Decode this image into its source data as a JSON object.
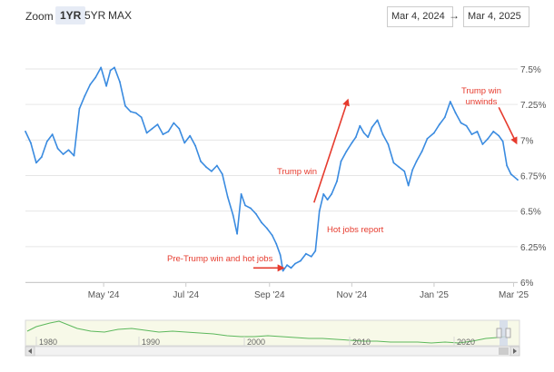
{
  "toolbar": {
    "zoom_label": "Zoom",
    "zoom_options": [
      "1YR",
      "5YR",
      "MAX"
    ],
    "active_zoom": "1YR",
    "date_from": "Mar 4, 2024",
    "date_arrow": "→",
    "date_to": "Mar 4, 2025"
  },
  "chart_data": {
    "type": "line",
    "title": "",
    "xlabel": "",
    "ylabel": "",
    "ylim": [
      6.0,
      7.5
    ],
    "y_ticks": [
      "6%",
      "6.25%",
      "6.5%",
      "6.75%",
      "7%",
      "7.25%",
      "7.5%"
    ],
    "y_tick_values": [
      6.0,
      6.25,
      6.5,
      6.75,
      7.0,
      7.25,
      7.5
    ],
    "x_range": [
      "2024-03-04",
      "2025-03-04"
    ],
    "x_ticks": [
      {
        "date": "2024-05-01",
        "label": "May '24"
      },
      {
        "date": "2024-07-01",
        "label": "Jul '24"
      },
      {
        "date": "2024-09-01",
        "label": "Sep '24"
      },
      {
        "date": "2024-11-01",
        "label": "Nov '24"
      },
      {
        "date": "2025-01-01",
        "label": "Jan '25"
      },
      {
        "date": "2025-03-01",
        "label": "Mar '25"
      }
    ],
    "line_color": "#3a8be0",
    "grid": true,
    "series": [
      {
        "points": [
          [
            "2024-03-04",
            7.06
          ],
          [
            "2024-03-08",
            6.98
          ],
          [
            "2024-03-12",
            6.84
          ],
          [
            "2024-03-16",
            6.88
          ],
          [
            "2024-03-20",
            6.99
          ],
          [
            "2024-03-24",
            7.04
          ],
          [
            "2024-03-28",
            6.94
          ],
          [
            "2024-04-01",
            6.9
          ],
          [
            "2024-04-05",
            6.93
          ],
          [
            "2024-04-09",
            6.89
          ],
          [
            "2024-04-13",
            7.22
          ],
          [
            "2024-04-17",
            7.31
          ],
          [
            "2024-04-21",
            7.39
          ],
          [
            "2024-04-25",
            7.44
          ],
          [
            "2024-04-29",
            7.51
          ],
          [
            "2024-05-03",
            7.38
          ],
          [
            "2024-05-06",
            7.49
          ],
          [
            "2024-05-09",
            7.51
          ],
          [
            "2024-05-13",
            7.41
          ],
          [
            "2024-05-17",
            7.24
          ],
          [
            "2024-05-21",
            7.2
          ],
          [
            "2024-05-25",
            7.19
          ],
          [
            "2024-05-29",
            7.16
          ],
          [
            "2024-06-02",
            7.05
          ],
          [
            "2024-06-06",
            7.08
          ],
          [
            "2024-06-10",
            7.11
          ],
          [
            "2024-06-14",
            7.04
          ],
          [
            "2024-06-18",
            7.06
          ],
          [
            "2024-06-22",
            7.12
          ],
          [
            "2024-06-26",
            7.08
          ],
          [
            "2024-06-30",
            6.98
          ],
          [
            "2024-07-04",
            7.03
          ],
          [
            "2024-07-08",
            6.96
          ],
          [
            "2024-07-12",
            6.85
          ],
          [
            "2024-07-16",
            6.81
          ],
          [
            "2024-07-20",
            6.78
          ],
          [
            "2024-07-24",
            6.82
          ],
          [
            "2024-07-28",
            6.76
          ],
          [
            "2024-08-01",
            6.6
          ],
          [
            "2024-08-05",
            6.47
          ],
          [
            "2024-08-08",
            6.34
          ],
          [
            "2024-08-11",
            6.62
          ],
          [
            "2024-08-14",
            6.54
          ],
          [
            "2024-08-18",
            6.52
          ],
          [
            "2024-08-22",
            6.48
          ],
          [
            "2024-08-26",
            6.42
          ],
          [
            "2024-08-30",
            6.38
          ],
          [
            "2024-09-03",
            6.33
          ],
          [
            "2024-09-06",
            6.27
          ],
          [
            "2024-09-09",
            6.19
          ],
          [
            "2024-09-11",
            6.08
          ],
          [
            "2024-09-14",
            6.12
          ],
          [
            "2024-09-17",
            6.1
          ],
          [
            "2024-09-20",
            6.13
          ],
          [
            "2024-09-24",
            6.15
          ],
          [
            "2024-09-28",
            6.2
          ],
          [
            "2024-10-02",
            6.18
          ],
          [
            "2024-10-05",
            6.22
          ],
          [
            "2024-10-08",
            6.5
          ],
          [
            "2024-10-11",
            6.62
          ],
          [
            "2024-10-14",
            6.58
          ],
          [
            "2024-10-17",
            6.62
          ],
          [
            "2024-10-21",
            6.71
          ],
          [
            "2024-10-24",
            6.85
          ],
          [
            "2024-10-28",
            6.92
          ],
          [
            "2024-11-01",
            6.98
          ],
          [
            "2024-11-04",
            7.02
          ],
          [
            "2024-11-07",
            7.1
          ],
          [
            "2024-11-10",
            7.05
          ],
          [
            "2024-11-13",
            7.02
          ],
          [
            "2024-11-16",
            7.09
          ],
          [
            "2024-11-20",
            7.14
          ],
          [
            "2024-11-24",
            7.04
          ],
          [
            "2024-11-28",
            6.97
          ],
          [
            "2024-12-02",
            6.84
          ],
          [
            "2024-12-06",
            6.81
          ],
          [
            "2024-12-10",
            6.78
          ],
          [
            "2024-12-13",
            6.68
          ],
          [
            "2024-12-16",
            6.79
          ],
          [
            "2024-12-19",
            6.85
          ],
          [
            "2024-12-23",
            6.92
          ],
          [
            "2024-12-27",
            7.01
          ],
          [
            "2025-01-01",
            7.05
          ],
          [
            "2025-01-05",
            7.11
          ],
          [
            "2025-01-09",
            7.16
          ],
          [
            "2025-01-13",
            7.27
          ],
          [
            "2025-01-17",
            7.19
          ],
          [
            "2025-01-21",
            7.12
          ],
          [
            "2025-01-25",
            7.1
          ],
          [
            "2025-01-29",
            7.04
          ],
          [
            "2025-02-02",
            7.06
          ],
          [
            "2025-02-06",
            6.97
          ],
          [
            "2025-02-10",
            7.01
          ],
          [
            "2025-02-14",
            7.06
          ],
          [
            "2025-02-18",
            7.03
          ],
          [
            "2025-02-21",
            6.99
          ],
          [
            "2025-02-24",
            6.82
          ],
          [
            "2025-02-27",
            6.76
          ],
          [
            "2025-03-04",
            6.72
          ]
        ]
      }
    ],
    "annotations": [
      {
        "text": "Pre-Trump win and hot jobs",
        "arrow_from": [
          "2024-08-20",
          6.1
        ],
        "arrow_to": [
          "2024-09-11",
          6.1
        ]
      },
      {
        "text": "Trump win",
        "arrow_from": [
          "2024-10-04",
          6.56
        ],
        "arrow_to": [
          "2024-10-29",
          7.28
        ]
      },
      {
        "text": "Hot jobs report",
        "arrow_from": null,
        "arrow_to": null
      },
      {
        "text": "Trump win unwinds",
        "arrow_from": [
          "2025-02-18",
          7.23
        ],
        "arrow_to": [
          "2025-03-03",
          6.98
        ]
      }
    ],
    "annotation_color": "#e63b2e"
  },
  "navigator": {
    "year_labels": [
      "1980",
      "1990",
      "2000",
      "2010",
      "2020"
    ]
  }
}
